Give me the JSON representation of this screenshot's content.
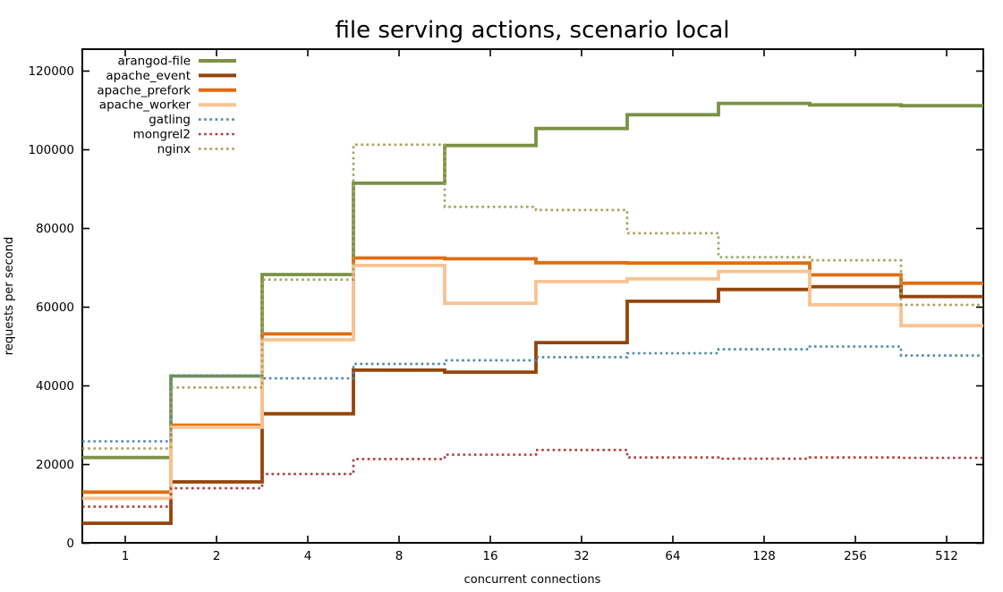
{
  "title": "file serving actions, scenario local",
  "axes": {
    "x_label": "concurrent connections",
    "y_label": "requests per second",
    "x_tick_labels": [
      "1",
      "2",
      "4",
      "8",
      "16",
      "32",
      "64",
      "128",
      "256",
      "512"
    ],
    "y_tick_labels": [
      "0",
      "20000",
      "40000",
      "60000",
      "80000",
      "100000",
      "120000"
    ],
    "y_tick_values": [
      0,
      20000,
      40000,
      60000,
      80000,
      100000,
      120000
    ]
  },
  "chart_data": {
    "type": "line",
    "line_style": "histeps",
    "x_scale": "log2",
    "grid": false,
    "legend_position": "top-left-inside",
    "x": [
      1,
      2,
      4,
      8,
      16,
      32,
      64,
      128,
      256,
      512
    ],
    "xlim": [
      0.72,
      676
    ],
    "ylim": [
      0,
      125600
    ],
    "series": [
      {
        "name": "arangod-file",
        "style": "solid",
        "color": "#7b9246",
        "values": [
          21800,
          42500,
          68300,
          91500,
          101100,
          105400,
          108900,
          111800,
          111400,
          111200
        ]
      },
      {
        "name": "apache_event",
        "style": "solid",
        "color": "#94450a",
        "values": [
          5100,
          15600,
          32900,
          44000,
          43500,
          51000,
          61500,
          64500,
          65200,
          62700
        ]
      },
      {
        "name": "apache_prefork",
        "style": "solid",
        "color": "#e06d10",
        "values": [
          13000,
          30000,
          53200,
          72500,
          72300,
          71300,
          71200,
          71200,
          68200,
          66100
        ]
      },
      {
        "name": "apache_worker",
        "style": "solid",
        "color": "#f8c393",
        "values": [
          11400,
          29500,
          51700,
          70600,
          61000,
          66500,
          67200,
          69100,
          60600,
          55300
        ]
      },
      {
        "name": "gatling",
        "style": "dotted",
        "color": "#4e87af",
        "values": [
          25900,
          42600,
          41900,
          45600,
          46500,
          47300,
          48300,
          49300,
          50000,
          47700
        ]
      },
      {
        "name": "mongrel2",
        "style": "dotted",
        "color": "#b23a3a",
        "values": [
          9300,
          14000,
          17600,
          21400,
          22500,
          23700,
          21800,
          21500,
          21800,
          21700
        ]
      },
      {
        "name": "nginx",
        "style": "dotted",
        "color": "#a8a05c",
        "values": [
          24100,
          39600,
          67000,
          101300,
          85500,
          84700,
          78800,
          72700,
          71900,
          60600
        ]
      }
    ]
  },
  "colors": {
    "background": "#ffffff",
    "axis": "#000000",
    "text": "#000000"
  }
}
